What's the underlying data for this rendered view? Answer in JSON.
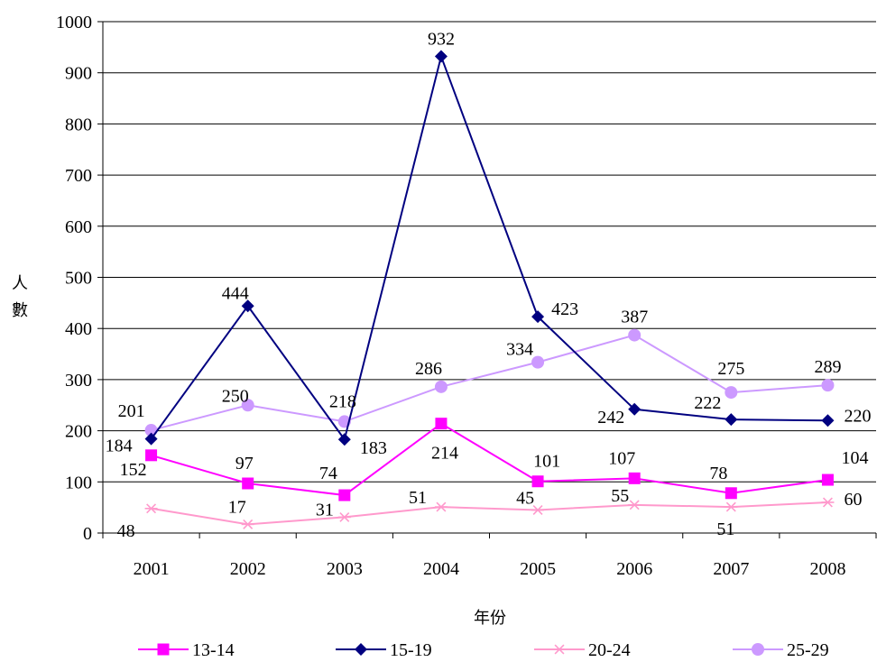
{
  "chart_data": {
    "type": "line",
    "xlabel": "年份",
    "ylabel": "人數",
    "ylim": [
      0,
      1000
    ],
    "yticks": [
      0,
      100,
      200,
      300,
      400,
      500,
      600,
      700,
      800,
      900,
      1000
    ],
    "categories": [
      "2001",
      "2002",
      "2003",
      "2004",
      "2005",
      "2006",
      "2007",
      "2008"
    ],
    "grid": "horizontal",
    "legend": "bottom",
    "series": [
      {
        "name": "13-14",
        "color": "#ff00ff",
        "marker": "square",
        "values": [
          152,
          97,
          74,
          214,
          101,
          107,
          78,
          104
        ]
      },
      {
        "name": "15-19",
        "color": "#000080",
        "marker": "diamond",
        "values": [
          184,
          444,
          183,
          932,
          423,
          242,
          222,
          220
        ]
      },
      {
        "name": "20-24",
        "color": "#ff99cc",
        "marker": "asterisk",
        "values": [
          48,
          17,
          31,
          51,
          45,
          55,
          51,
          60
        ]
      },
      {
        "name": "25-29",
        "color": "#cc99ff",
        "marker": "circle",
        "values": [
          201,
          250,
          218,
          286,
          334,
          387,
          275,
          289
        ]
      }
    ]
  }
}
